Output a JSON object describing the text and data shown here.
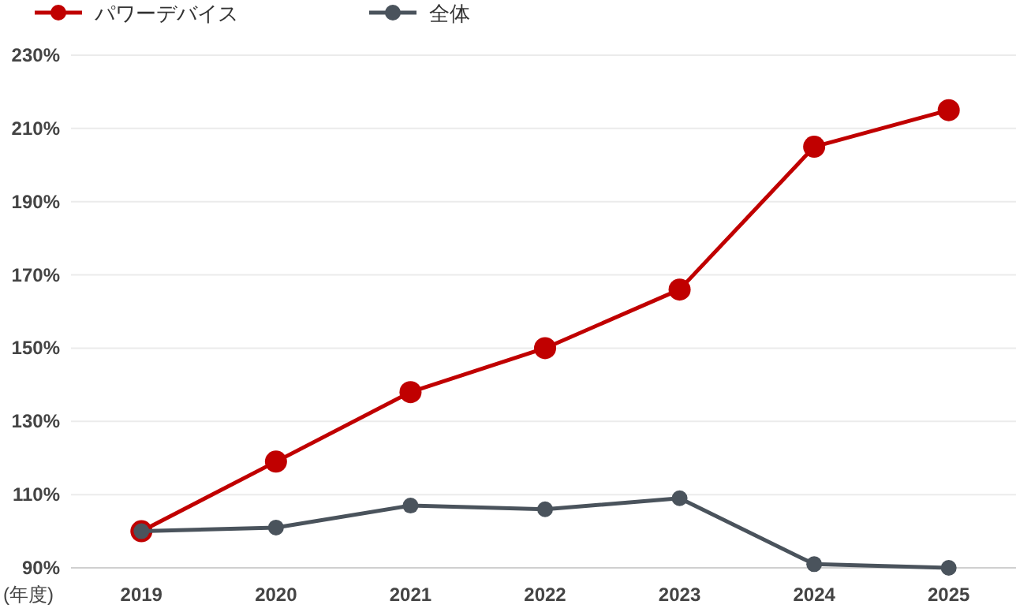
{
  "chart_data": {
    "type": "line",
    "xlabel": "(年度)",
    "categories": [
      "2019",
      "2020",
      "2021",
      "2022",
      "2023",
      "2024",
      "2025"
    ],
    "series": [
      {
        "name": "パワーデバイス",
        "color": "#c00000",
        "values": [
          100,
          119,
          138,
          150,
          166,
          205,
          215
        ]
      },
      {
        "name": "全体",
        "color": "#4a535c",
        "values": [
          100,
          101,
          107,
          106,
          109,
          91,
          90
        ]
      }
    ],
    "ylim": [
      90,
      230
    ],
    "yticks": [
      {
        "value": 90,
        "label": "90%"
      },
      {
        "value": 110,
        "label": "110%"
      },
      {
        "value": 130,
        "label": "130%"
      },
      {
        "value": 150,
        "label": "150%"
      },
      {
        "value": 170,
        "label": "170%"
      },
      {
        "value": 190,
        "label": "190%"
      },
      {
        "value": 210,
        "label": "210%"
      },
      {
        "value": 230,
        "label": "230%"
      }
    ],
    "grid": "y",
    "legend": "top left",
    "marker": "circle",
    "line_style": "solid"
  }
}
